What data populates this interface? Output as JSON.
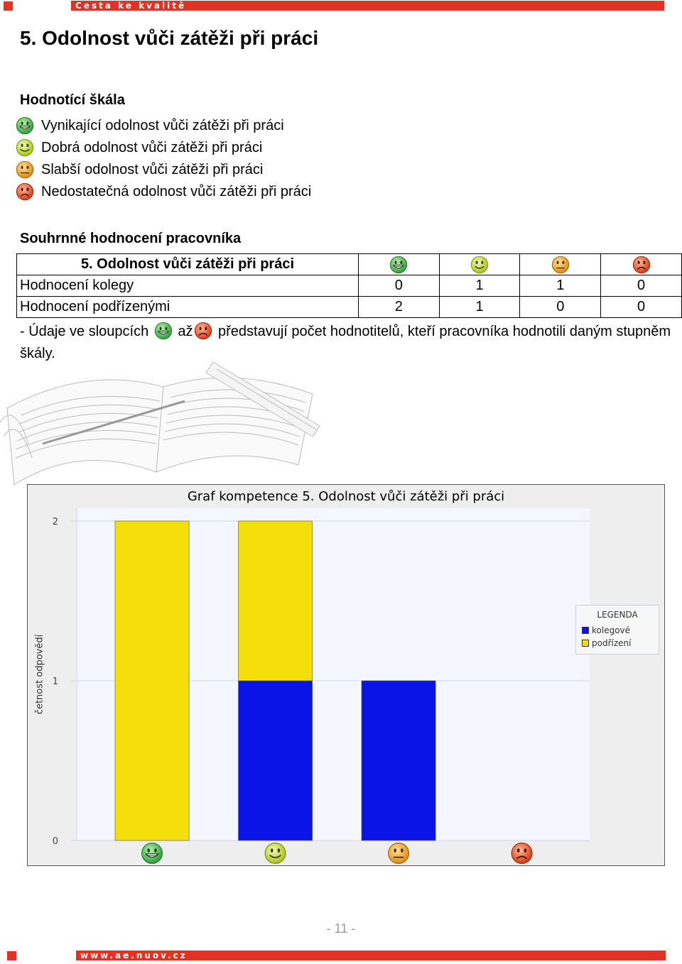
{
  "header": {
    "banner_text": "Cesta ke kvalitě"
  },
  "title": "5. Odolnost vůči zátěži při práci",
  "scale": {
    "heading": "Hodnotící škála",
    "items": [
      {
        "label": "Vynikající odolnost vůči zátěži při práci",
        "icon": "grin-green-face-icon"
      },
      {
        "label": "Dobrá odolnost vůči zátěži při práci",
        "icon": "smile-yellow-face-icon"
      },
      {
        "label": "Slabší odolnost vůči zátěži při práci",
        "icon": "neutral-orange-face-icon"
      },
      {
        "label": "Nedostatečná odolnost vůči zátěži při práci",
        "icon": "sad-red-face-icon"
      }
    ]
  },
  "summary": {
    "heading": "Souhrnné hodnocení pracovníka",
    "table_header": "5. Odolnost vůči zátěži při práci",
    "rows": [
      {
        "label": "Hodnocení kolegy",
        "values": [
          "0",
          "1",
          "1",
          "0"
        ]
      },
      {
        "label": "Hodnocení podřízenými",
        "values": [
          "2",
          "1",
          "0",
          "0"
        ]
      }
    ],
    "note_prefix": "- Údaje ve sloupcích",
    "note_mid": "až",
    "note_suffix": "představují počet hodnotitelů, kteří pracovníka hodnotili daným stupněm škály."
  },
  "colors": {
    "banner": "#e23223",
    "kolegove": "#0a14e6",
    "podrizeni": "#f5df0a",
    "green_face": "#3fb54a",
    "yellow_face": "#c8e01e",
    "orange_face": "#f2a316",
    "red_face": "#e8451c"
  },
  "chart_data": {
    "type": "bar",
    "stacked": true,
    "title": "Graf kompetence 5. Odolnost vůči zátěži při práci",
    "ylabel": "četnost odpovědí",
    "xlabel": "",
    "categories": [
      "grin-green-face-icon",
      "smile-yellow-face-icon",
      "neutral-orange-face-icon",
      "sad-red-face-icon"
    ],
    "yticks": [
      "0",
      "1",
      "2"
    ],
    "ylim": [
      0,
      2
    ],
    "grid": true,
    "legend_title": "LEGENDA",
    "legend_position": "right",
    "series": [
      {
        "name": "kolegové",
        "values": [
          0,
          1,
          1,
          0
        ],
        "color": "#0a14e6"
      },
      {
        "name": "podřízení",
        "values": [
          2,
          1,
          0,
          0
        ],
        "color": "#f5df0a"
      }
    ]
  },
  "footer": {
    "page_number": "- 11 -",
    "banner_text": "www.ae.nuov.cz"
  }
}
